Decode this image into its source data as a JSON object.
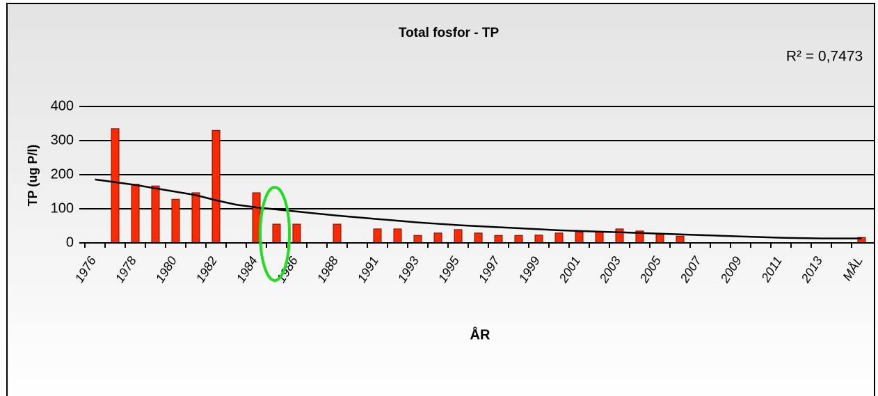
{
  "chart_data": {
    "type": "bar",
    "title": "Total fosfor - TP",
    "annotation": "R² = 0,7473",
    "y_label": "TP (ug P/l)",
    "x_label": "ÅR",
    "categories": [
      "1976",
      null,
      "1978",
      null,
      "1980",
      null,
      "1982",
      null,
      "1984",
      null,
      "1986",
      null,
      "1988",
      null,
      "1991",
      null,
      "1993",
      null,
      "1995",
      null,
      "1997",
      null,
      "1999",
      null,
      "2001",
      null,
      "2003",
      null,
      "2005",
      null,
      "2007",
      null,
      "2009",
      null,
      "2011",
      null,
      "2013",
      null,
      "MÅL"
    ],
    "series": [
      {
        "type": "bar",
        "color": "#ff2a00",
        "values": [
          null,
          335,
          172,
          167,
          128,
          147,
          330,
          null,
          147,
          55,
          55,
          null,
          55,
          null,
          41,
          41,
          22,
          29,
          39,
          29,
          22,
          22,
          23,
          29,
          31,
          31,
          41,
          35,
          27,
          20,
          null,
          null,
          null,
          null,
          null,
          null,
          null,
          null,
          16
        ]
      },
      {
        "type": "line",
        "color": "#000000",
        "values": [
          186,
          178,
          170,
          160,
          150,
          140,
          125,
          112,
          104,
          98,
          92,
          86,
          80,
          75,
          70,
          65,
          60,
          56,
          52,
          49,
          46,
          43,
          40,
          37,
          35,
          33,
          31,
          29,
          27,
          25,
          23,
          21,
          19,
          17,
          15,
          14,
          13,
          13,
          13
        ]
      }
    ],
    "ylim": [
      0,
      400
    ],
    "yticks": [
      0,
      100,
      200,
      300,
      400
    ],
    "grid": true
  }
}
